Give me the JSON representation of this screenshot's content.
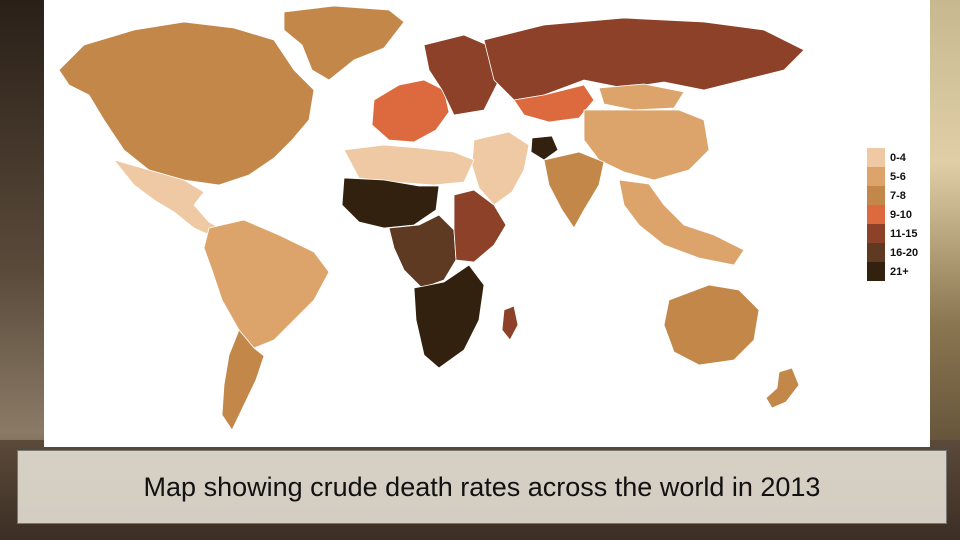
{
  "caption": "Map showing crude death rates across the world in 2013",
  "legend": [
    {
      "label": "0-4",
      "color": "#efc9a3"
    },
    {
      "label": "5-6",
      "color": "#dca46b"
    },
    {
      "label": "7-8",
      "color": "#c4874a"
    },
    {
      "label": "9-10",
      "color": "#dc6a3e"
    },
    {
      "label": "11-15",
      "color": "#8c4128"
    },
    {
      "label": "16-20",
      "color": "#5e3a22"
    },
    {
      "label": "21+",
      "color": "#33210f"
    }
  ],
  "regions": [
    {
      "name": "greenland",
      "rate_class": "7-8"
    },
    {
      "name": "north-america",
      "rate_class": "7-8"
    },
    {
      "name": "mexico-central-america",
      "rate_class": "0-4"
    },
    {
      "name": "south-america",
      "rate_class": "5-6"
    },
    {
      "name": "argentina",
      "rate_class": "7-8"
    },
    {
      "name": "western-europe",
      "rate_class": "9-10"
    },
    {
      "name": "eastern-europe",
      "rate_class": "11-15"
    },
    {
      "name": "russia",
      "rate_class": "11-15"
    },
    {
      "name": "kazakhstan",
      "rate_class": "9-10"
    },
    {
      "name": "china",
      "rate_class": "5-6"
    },
    {
      "name": "mongolia",
      "rate_class": "5-6"
    },
    {
      "name": "india",
      "rate_class": "7-8"
    },
    {
      "name": "middle-east",
      "rate_class": "0-4"
    },
    {
      "name": "north-africa",
      "rate_class": "0-4"
    },
    {
      "name": "sahel",
      "rate_class": "21+"
    },
    {
      "name": "central-africa",
      "rate_class": "16-20"
    },
    {
      "name": "east-africa",
      "rate_class": "11-15"
    },
    {
      "name": "southern-africa",
      "rate_class": "21+"
    },
    {
      "name": "southeast-asia",
      "rate_class": "5-6"
    },
    {
      "name": "australia",
      "rate_class": "7-8"
    },
    {
      "name": "new-zealand",
      "rate_class": "7-8"
    },
    {
      "name": "madagascar",
      "rate_class": "11-15"
    },
    {
      "name": "afghanistan",
      "rate_class": "21+"
    }
  ]
}
